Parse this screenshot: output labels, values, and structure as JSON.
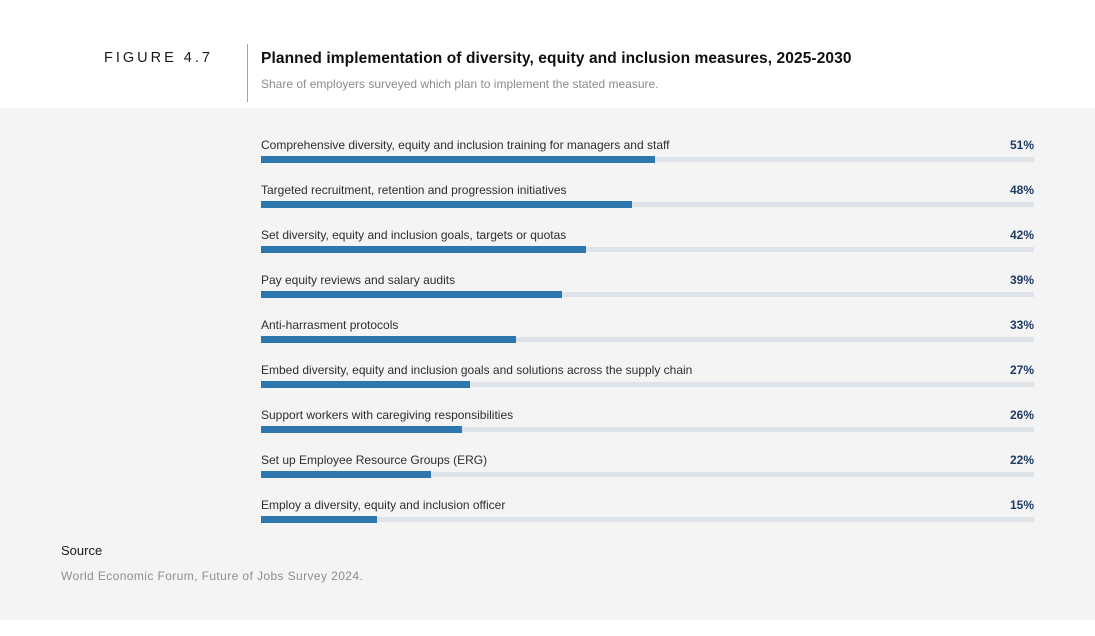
{
  "figure_label": "FIGURE 4.7",
  "header": {
    "title": "Planned implementation of diversity, equity and inclusion measures, 2025-2030",
    "subtitle": "Share of employers surveyed which plan to implement the stated measure."
  },
  "chart_data": {
    "type": "bar",
    "orientation": "horizontal",
    "title": "Planned implementation of diversity, equity and inclusion measures, 2025-2030",
    "xlabel": "",
    "ylabel": "",
    "xlim": [
      0,
      100
    ],
    "unit": "%",
    "grid": false,
    "legend": false,
    "categories": [
      "Comprehensive diversity, equity and inclusion training for managers and staff",
      "Targeted recruitment, retention and progression initiatives",
      "Set diversity, equity and inclusion goals, targets or quotas",
      "Pay equity reviews and salary audits",
      "Anti-harrasment protocols",
      "Embed diversity, equity and inclusion goals and solutions across the supply chain",
      "Support workers with caregiving responsibilities",
      "Set up Employee Resource Groups (ERG)",
      "Employ a diversity, equity and inclusion officer"
    ],
    "values": [
      51,
      48,
      42,
      39,
      33,
      27,
      26,
      22,
      15
    ],
    "value_labels": [
      "51%",
      "48%",
      "42%",
      "39%",
      "33%",
      "27%",
      "26%",
      "22%",
      "15%"
    ]
  },
  "source": {
    "label": "Source",
    "text": "World Economic Forum, Future of Jobs Survey 2024."
  },
  "colors": {
    "bar_fill": "#2d76ae",
    "bar_track": "#dde3e9",
    "value_text": "#1f3a64",
    "panel_background": "#f4f4f4",
    "subtitle_text": "#8c8c8c"
  }
}
